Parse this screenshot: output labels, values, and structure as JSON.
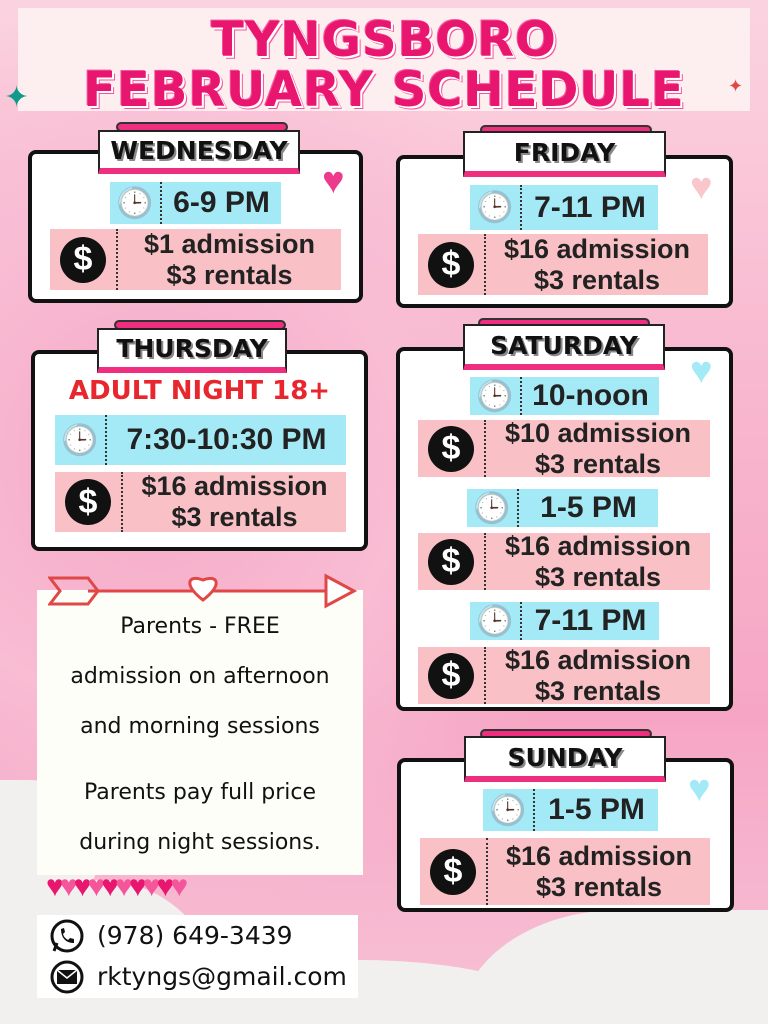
{
  "title": {
    "line1": "TYNGSBORO",
    "line2": "FEBRUARY SCHEDULE"
  },
  "colors": {
    "accent": "#e8166e",
    "time_bg": "#a3e9f6",
    "price_bg": "#f9c1c6"
  },
  "days": {
    "wednesday": {
      "label": "WEDNESDAY",
      "sessions": [
        {
          "time": "6-9 PM",
          "admission": "$1 admission",
          "rentals": "$3 rentals"
        }
      ]
    },
    "friday": {
      "label": "FRIDAY",
      "sessions": [
        {
          "time": "7-11 PM",
          "admission": "$16 admission",
          "rentals": "$3 rentals"
        }
      ]
    },
    "thursday": {
      "label": "THURSDAY",
      "note": "ADULT NIGHT 18+",
      "sessions": [
        {
          "time": "7:30-10:30 PM",
          "admission": "$16 admission",
          "rentals": "$3 rentals"
        }
      ]
    },
    "saturday": {
      "label": "SATURDAY",
      "sessions": [
        {
          "time": "10-noon",
          "admission": "$10 admission",
          "rentals": "$3 rentals"
        },
        {
          "time": "1-5 PM",
          "admission": "$16 admission",
          "rentals": "$3 rentals"
        },
        {
          "time": "7-11 PM",
          "admission": "$16 admission",
          "rentals": "$3 rentals"
        }
      ]
    },
    "sunday": {
      "label": "SUNDAY",
      "sessions": [
        {
          "time": "1-5 PM",
          "admission": "$16 admission",
          "rentals": "$3 rentals"
        }
      ]
    }
  },
  "parents": {
    "lines": [
      "Parents - FREE",
      "admission on afternoon",
      "and morning  sessions",
      "Parents pay full price",
      "during night sessions."
    ]
  },
  "contact": {
    "phone": "(978) 649-3439",
    "email": "rktyngs@gmail.com",
    "phone_icon": "whatsapp-icon",
    "email_icon": "envelope-icon"
  },
  "icons": {
    "time": "clock-icon",
    "price": "dollar-icon"
  }
}
